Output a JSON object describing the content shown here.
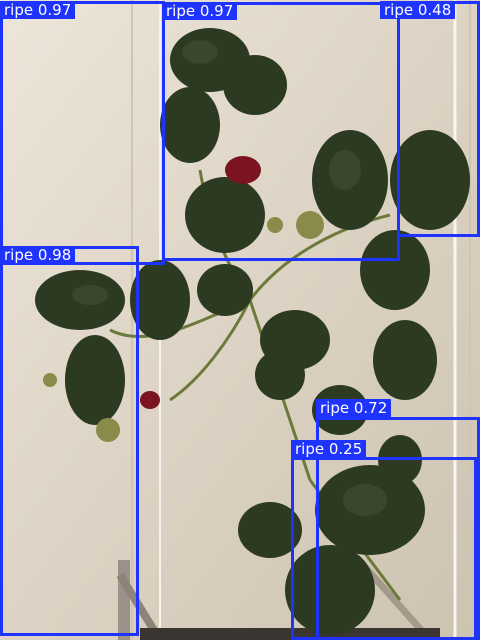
{
  "detections": [
    {
      "label": "ripe 0.97",
      "class": "ripe",
      "confidence": 0.97
    },
    {
      "label": "ripe 0.97",
      "class": "ripe",
      "confidence": 0.97
    },
    {
      "label": "ripe 0.48",
      "class": "ripe",
      "confidence": 0.48
    },
    {
      "label": "ripe 0.98",
      "class": "ripe",
      "confidence": 0.98
    },
    {
      "label": "ripe 0.72",
      "class": "ripe",
      "confidence": 0.72
    },
    {
      "label": "ripe 0.25",
      "class": "ripe",
      "confidence": 0.25
    }
  ],
  "colors": {
    "box": "#1f33ff",
    "label_text": "#ffffff",
    "background_panel": "#e8e0d2",
    "leaf": "#2d3a22",
    "fruit": "#7a1420"
  }
}
